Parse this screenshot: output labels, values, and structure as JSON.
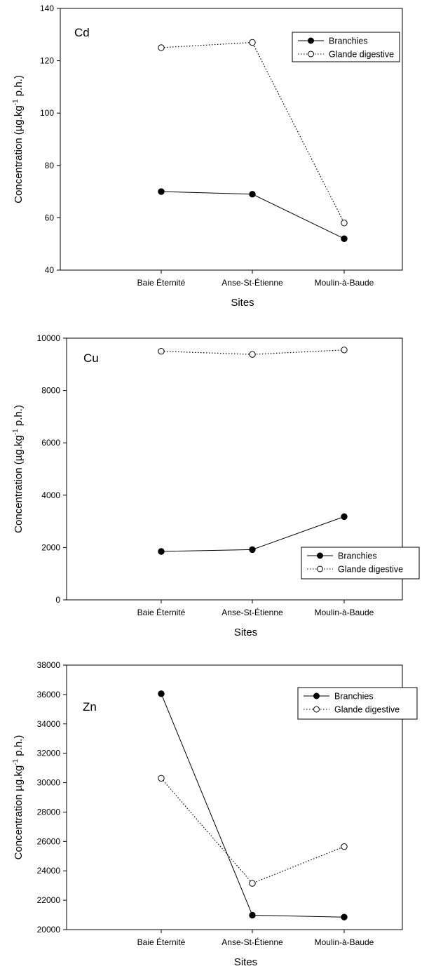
{
  "chart_data": [
    {
      "type": "line",
      "panel_label": "Cd",
      "categories": [
        "Baie Éternité",
        "Anse-St-Étienne",
        "Moulin-à-Baude"
      ],
      "series": [
        {
          "name": "Branchies",
          "values": [
            70,
            69,
            52
          ],
          "marker": "filled-circle",
          "line": "solid"
        },
        {
          "name": "Glande digestive",
          "values": [
            125,
            127,
            58
          ],
          "marker": "open-circle",
          "line": "dotted"
        }
      ],
      "xlabel": "Sites",
      "ylabel_parts": [
        "Concentration (µg.kg",
        "-1",
        " p.h.)"
      ],
      "ylim": [
        40,
        140
      ],
      "yticks": [
        40,
        60,
        80,
        100,
        120,
        140
      ],
      "ytick_labels": [
        "40",
        "60",
        "80",
        "100",
        "120",
        "140"
      ],
      "legend_position": "top-right",
      "grid": false
    },
    {
      "type": "line",
      "panel_label": "Cu",
      "categories": [
        "Baie Éternité",
        "Anse-St-Étienne",
        "Moulin-à-Baude"
      ],
      "series": [
        {
          "name": "Branchies",
          "values": [
            1850,
            1920,
            3180
          ],
          "marker": "filled-circle",
          "line": "solid"
        },
        {
          "name": "Glande digestive",
          "values": [
            9500,
            9380,
            9550
          ],
          "marker": "open-circle",
          "line": "dotted"
        }
      ],
      "xlabel": "Sites",
      "ylabel_parts": [
        "Concentration (µg.kg",
        "-1",
        " p.h.)"
      ],
      "ylim": [
        0,
        10000
      ],
      "yticks": [
        0,
        2000,
        4000,
        6000,
        8000,
        10000
      ],
      "ytick_labels": [
        "0",
        "2000",
        "4000",
        "6000",
        "8000",
        "10000"
      ],
      "legend_position": "bottom-right",
      "grid": false
    },
    {
      "type": "line",
      "panel_label": "Zn",
      "categories": [
        "Baie Éternité",
        "Anse-St-Étienne",
        "Moulin-à-Baude"
      ],
      "series": [
        {
          "name": "Branchies",
          "values": [
            36050,
            20980,
            20850
          ],
          "marker": "filled-circle",
          "line": "solid"
        },
        {
          "name": "Glande digestive",
          "values": [
            30300,
            23150,
            25650
          ],
          "marker": "open-circle",
          "line": "dotted"
        }
      ],
      "xlabel": "Sites",
      "ylabel_parts": [
        "Concentration µg.kg",
        "-1",
        " p.h.)"
      ],
      "ylim": [
        20000,
        38000
      ],
      "yticks": [
        20000,
        22000,
        24000,
        26000,
        28000,
        30000,
        32000,
        34000,
        36000,
        38000
      ],
      "ytick_labels": [
        "20000",
        "22000",
        "24000",
        "26000",
        "28000",
        "30000",
        "32000",
        "34000",
        "36000",
        "38000"
      ],
      "legend_position": "top-right",
      "grid": false
    }
  ]
}
